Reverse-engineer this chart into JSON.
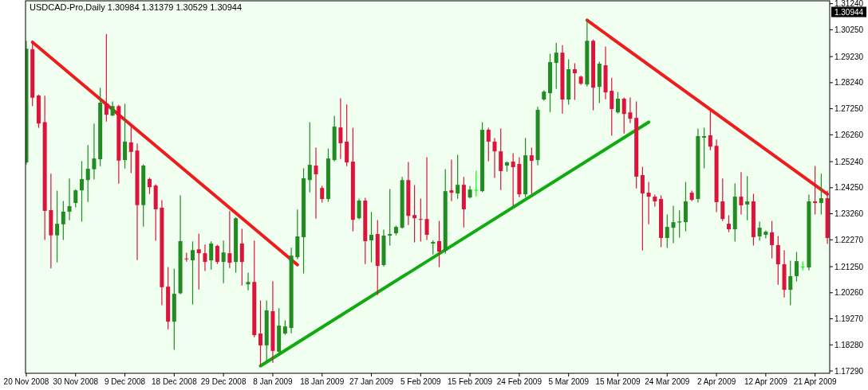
{
  "chart_data": {
    "type": "candlestick",
    "title": "USDCAD-Pro,Daily  1.30984 1.31379 1.30529 1.30944",
    "categories": [
      "20 Nov 2008",
      null,
      null,
      null,
      null,
      null,
      null,
      null,
      "30 Nov 2008",
      null,
      null,
      null,
      null,
      null,
      null,
      null,
      "9 Dec 2008",
      null,
      null,
      null,
      null,
      null,
      null,
      null,
      "18 Dec 2008",
      null,
      null,
      null,
      null,
      null,
      null,
      null,
      "29 Dec 2008",
      null,
      null,
      null,
      null,
      null,
      null,
      null,
      "8 Jan 2009",
      null,
      null,
      null,
      null,
      null,
      null,
      null,
      "18 Jan 2009",
      null,
      null,
      null,
      null,
      null,
      null,
      null,
      "27 Jan 2009",
      null,
      null,
      null,
      null,
      null,
      null,
      null,
      "5 Feb 2009",
      null,
      null,
      null,
      null,
      null,
      null,
      null,
      "15 Feb 2009",
      null,
      null,
      null,
      null,
      null,
      null,
      null,
      "24 Feb 2009",
      null,
      null,
      null,
      null,
      null,
      null,
      null,
      "5 Mar 2009",
      null,
      null,
      null,
      null,
      null,
      null,
      null,
      "15 Mar 2009",
      null,
      null,
      null,
      null,
      null,
      null,
      null,
      "24 Mar 2009",
      null,
      null,
      null,
      null,
      null,
      null,
      null,
      "2 Apr 2009",
      null,
      null,
      null,
      null,
      null,
      null,
      null,
      "12 Apr 2009",
      null,
      null,
      null,
      null,
      null,
      null,
      null,
      "21 Apr 2009",
      null,
      null
    ],
    "ohlc": [
      [
        1.2521,
        1.2981,
        1.2515,
        1.2953
      ],
      [
        1.2951,
        1.2976,
        1.2737,
        1.2767
      ],
      [
        1.2775,
        1.2777,
        1.2654,
        1.2669
      ],
      [
        1.2674,
        1.2773,
        1.2228,
        1.2337
      ],
      [
        1.234,
        1.2476,
        1.212,
        1.2244
      ],
      [
        1.2244,
        1.2412,
        1.2143,
        1.2288
      ],
      [
        1.2286,
        1.2373,
        1.2228,
        1.2334
      ],
      [
        1.2334,
        1.2458,
        1.2303,
        1.2355
      ],
      [
        1.2367,
        1.2417,
        1.2352,
        1.2415
      ],
      [
        1.2415,
        1.2524,
        1.2298,
        1.2458
      ],
      [
        1.2454,
        1.2585,
        1.2373,
        1.2497
      ],
      [
        1.2495,
        1.2667,
        1.2458,
        1.2536
      ],
      [
        1.2533,
        1.2802,
        1.2509,
        1.2748
      ],
      [
        1.2745,
        1.3007,
        1.2678,
        1.2702
      ],
      [
        1.2699,
        1.2751,
        1.2699,
        1.2735
      ],
      [
        1.2735,
        1.2738,
        1.2442,
        1.2528
      ],
      [
        1.253,
        1.2742,
        1.25,
        1.26
      ],
      [
        1.2597,
        1.2664,
        1.2482,
        1.2561
      ],
      [
        1.2566,
        1.2591,
        1.2152,
        1.2359
      ],
      [
        1.2359,
        1.2512,
        1.2279,
        1.2509
      ],
      [
        1.2458,
        1.2461,
        1.2403,
        1.2427
      ],
      [
        1.2433,
        1.2436,
        1.2225,
        1.2343
      ],
      [
        1.2349,
        1.2376,
        1.198,
        1.2047
      ],
      [
        1.2049,
        1.2122,
        1.1889,
        1.1916
      ],
      [
        1.1916,
        1.2116,
        1.1811,
        1.2022
      ],
      [
        1.2024,
        1.2394,
        1.2022,
        1.2222
      ],
      [
        1.2156,
        1.2176,
        1.2146,
        1.2154
      ],
      [
        1.2149,
        1.2219,
        1.1983,
        1.2188
      ],
      [
        1.2191,
        1.2249,
        1.204,
        1.2176
      ],
      [
        1.2176,
        1.2207,
        1.211,
        1.2143
      ],
      [
        1.2149,
        1.2219,
        1.2116,
        1.2213
      ],
      [
        1.2204,
        1.2206,
        1.2137,
        1.2143
      ],
      [
        1.2143,
        1.2222,
        1.2064,
        1.2179
      ],
      [
        1.2176,
        1.2334,
        1.2122,
        1.214
      ],
      [
        1.2143,
        1.2311,
        1.2104,
        1.2309
      ],
      [
        1.2213,
        1.2267,
        1.2055,
        1.2143
      ],
      [
        1.2058,
        1.2101,
        1.2037,
        1.2067
      ],
      [
        1.2067,
        1.2222,
        1.1859,
        1.1865
      ],
      [
        1.1871,
        1.1995,
        1.175,
        1.1826
      ],
      [
        1.1826,
        1.1995,
        1.1768,
        1.1959
      ],
      [
        1.1956,
        1.2068,
        1.1762,
        1.1805
      ],
      [
        1.1802,
        1.1965,
        1.1793,
        1.1901
      ],
      [
        1.1871,
        1.1919,
        1.1868,
        1.1898
      ],
      [
        1.1892,
        1.2195,
        1.1874,
        1.2167
      ],
      [
        1.2161,
        1.234,
        1.2155,
        1.224
      ],
      [
        1.2237,
        1.2497,
        1.2101,
        1.2461
      ],
      [
        1.2454,
        1.2672,
        1.2409,
        1.2512
      ],
      [
        1.2509,
        1.2575,
        1.2309,
        1.2476
      ],
      [
        1.2424,
        1.243,
        1.237,
        1.2382
      ],
      [
        1.2382,
        1.2572,
        1.2373,
        1.2536
      ],
      [
        1.253,
        1.2696,
        1.2527,
        1.2657
      ],
      [
        1.2654,
        1.2763,
        1.2536,
        1.2594
      ],
      [
        1.26,
        1.2739,
        1.2509,
        1.2521
      ],
      [
        1.2524,
        1.2651,
        1.2261,
        1.2303
      ],
      [
        1.2309,
        1.2382,
        1.2307,
        1.2376
      ],
      [
        1.2376,
        1.2385,
        1.2137,
        1.2222
      ],
      [
        1.2225,
        1.2331,
        1.2143,
        1.2246
      ],
      [
        1.2249,
        1.23,
        1.2019,
        1.2128
      ],
      [
        1.2131,
        1.2264,
        1.2128,
        1.2243
      ],
      [
        1.2243,
        1.2418,
        1.2207,
        1.2249
      ],
      [
        1.2252,
        1.2279,
        1.2246,
        1.2276
      ],
      [
        1.2273,
        1.2464,
        1.2271,
        1.2454
      ],
      [
        1.2454,
        1.2521,
        1.2285,
        1.2318
      ],
      [
        1.2321,
        1.2433,
        1.2219,
        1.2309
      ],
      [
        1.2306,
        1.2382,
        1.2222,
        1.2303
      ],
      [
        1.2306,
        1.2539,
        1.2228,
        1.2246
      ],
      [
        1.2213,
        1.2223,
        1.2173,
        1.2219
      ],
      [
        1.2222,
        1.2297,
        1.2125,
        1.2182
      ],
      [
        1.2185,
        1.2494,
        1.2176,
        1.2412
      ],
      [
        1.2415,
        1.253,
        1.2376,
        1.2406
      ],
      [
        1.2403,
        1.2548,
        1.2385,
        1.2436
      ],
      [
        1.2436,
        1.2464,
        1.2276,
        1.2343
      ],
      [
        1.2388,
        1.243,
        1.2386,
        1.2418
      ],
      [
        1.2417,
        1.2488,
        1.2394,
        1.2417
      ],
      [
        1.2412,
        1.2672,
        1.241,
        1.2645
      ],
      [
        1.2645,
        1.2651,
        1.2527,
        1.26
      ],
      [
        1.26,
        1.2612,
        1.2464,
        1.2563
      ],
      [
        1.2563,
        1.2648,
        1.2418,
        1.2488
      ],
      [
        1.2509,
        1.2523,
        1.2488,
        1.2521
      ],
      [
        1.2524,
        1.2554,
        1.2358,
        1.2503
      ],
      [
        1.2515,
        1.2539,
        1.2391,
        1.24
      ],
      [
        1.24,
        1.2612,
        1.2391,
        1.2548
      ],
      [
        1.2548,
        1.2575,
        1.2403,
        1.2527
      ],
      [
        1.253,
        1.273,
        1.2512,
        1.2721
      ],
      [
        1.276,
        1.2793,
        1.2757,
        1.279
      ],
      [
        1.2784,
        1.2932,
        1.2714,
        1.2902
      ],
      [
        1.2899,
        1.2974,
        1.2802,
        1.2938
      ],
      [
        1.2938,
        1.2965,
        1.2708,
        1.276
      ],
      [
        1.276,
        1.2911,
        1.2742,
        1.2875
      ],
      [
        1.2875,
        1.2896,
        1.276,
        1.286
      ],
      [
        1.2847,
        1.2849,
        1.2817,
        1.282
      ],
      [
        1.2817,
        1.3065,
        1.2811,
        1.2983
      ],
      [
        1.2983,
        1.2986,
        1.2721,
        1.2805
      ],
      [
        1.2808,
        1.2902,
        1.2748,
        1.2896
      ],
      [
        1.289,
        1.2959,
        1.2763,
        1.2787
      ],
      [
        1.2793,
        1.2841,
        1.2624,
        1.2724
      ],
      [
        1.2711,
        1.2787,
        1.2709,
        1.2763
      ],
      [
        1.2763,
        1.2766,
        1.2633,
        1.2705
      ],
      [
        1.2711,
        1.2766,
        1.2672,
        1.2687
      ],
      [
        1.269,
        1.2751,
        1.2424,
        1.2467
      ],
      [
        1.2473,
        1.2503,
        1.2188,
        1.2403
      ],
      [
        1.2406,
        1.2445,
        1.2288,
        1.2391
      ],
      [
        1.2391,
        1.2397,
        1.2355,
        1.2373
      ],
      [
        1.2382,
        1.2394,
        1.2201,
        1.2234
      ],
      [
        1.2234,
        1.2321,
        1.2198,
        1.2276
      ],
      [
        1.2273,
        1.2355,
        1.2216,
        1.2294
      ],
      [
        1.2293,
        1.2337,
        1.2237,
        1.2297
      ],
      [
        1.2294,
        1.2445,
        1.2261,
        1.2373
      ],
      [
        1.2406,
        1.2412,
        1.2376,
        1.2379
      ],
      [
        1.2382,
        1.2648,
        1.237,
        1.2621
      ],
      [
        1.2615,
        1.2651,
        1.25,
        1.2621
      ],
      [
        1.2624,
        1.2714,
        1.2569,
        1.2581
      ],
      [
        1.2584,
        1.2606,
        1.2334,
        1.237
      ],
      [
        1.2373,
        1.2458,
        1.23,
        1.2306
      ],
      [
        1.2288,
        1.2318,
        1.2258,
        1.2267
      ],
      [
        1.2267,
        1.2439,
        1.2222,
        1.2391
      ],
      [
        1.2391,
        1.2482,
        1.2325,
        1.2358
      ],
      [
        1.2361,
        1.2467,
        1.2303,
        1.2373
      ],
      [
        1.2373,
        1.24,
        1.2207,
        1.2237
      ],
      [
        1.224,
        1.2294,
        1.2225,
        1.2273
      ],
      [
        1.2246,
        1.2261,
        1.2234,
        1.2258
      ],
      [
        1.2255,
        1.2297,
        1.2158,
        1.2207
      ],
      [
        1.2207,
        1.224,
        1.2058,
        1.2134
      ],
      [
        1.2134,
        1.2185,
        1.201,
        1.2037
      ],
      [
        1.2037,
        1.2146,
        1.198,
        1.2089
      ],
      [
        1.2089,
        1.2179,
        1.2071,
        1.2146
      ],
      [
        1.2125,
        1.2143,
        1.2113,
        1.2125
      ],
      [
        1.2122,
        1.2397,
        1.2113,
        1.2373
      ],
      [
        1.2373,
        1.2506,
        1.2325,
        1.2367
      ],
      [
        1.2367,
        1.2476,
        1.2325,
        1.2385
      ],
      [
        1.2385,
        1.2412,
        1.2213,
        1.2234
      ]
    ],
    "colors": [
      "#228b22",
      "#dc143c",
      "#dc143c",
      "#dc143c",
      "#dc143c",
      "#228b22",
      "#228b22",
      "#228b22",
      "#228b22",
      "#228b22",
      "#228b22",
      "#228b22",
      "#228b22",
      "#dc143c",
      "#228b22",
      "#dc143c",
      "#228b22",
      "#dc143c",
      "#dc143c",
      "#228b22",
      "#dc143c",
      "#dc143c",
      "#dc143c",
      "#dc143c",
      "#228b22",
      "#228b22",
      "#dc143c",
      "#228b22",
      "#dc143c",
      "#dc143c",
      "#228b22",
      "#dc143c",
      "#228b22",
      "#dc143c",
      "#228b22",
      "#dc143c",
      "#228b22",
      "#dc143c",
      "#dc143c",
      "#228b22",
      "#dc143c",
      "#228b22",
      "#228b22",
      "#228b22",
      "#228b22",
      "#228b22",
      "#228b22",
      "#dc143c",
      "#dc143c",
      "#228b22",
      "#228b22",
      "#dc143c",
      "#dc143c",
      "#dc143c",
      "#228b22",
      "#dc143c",
      "#228b22",
      "#dc143c",
      "#228b22",
      "#228b22",
      "#228b22",
      "#228b22",
      "#dc143c",
      "#dc143c",
      "#dc143c",
      "#dc143c",
      "#228b22",
      "#dc143c",
      "#228b22",
      "#dc143c",
      "#228b22",
      "#dc143c",
      "#228b22",
      "#00ff00",
      "#228b22",
      "#dc143c",
      "#dc143c",
      "#dc143c",
      "#228b22",
      "#dc143c",
      "#dc143c",
      "#228b22",
      "#dc143c",
      "#228b22",
      "#228b22",
      "#228b22",
      "#228b22",
      "#dc143c",
      "#228b22",
      "#dc143c",
      "#dc143c",
      "#228b22",
      "#dc143c",
      "#228b22",
      "#dc143c",
      "#dc143c",
      "#228b22",
      "#dc143c",
      "#dc143c",
      "#dc143c",
      "#dc143c",
      "#dc143c",
      "#dc143c",
      "#dc143c",
      "#228b22",
      "#228b22",
      "#228b22",
      "#228b22",
      "#dc143c",
      "#228b22",
      "#228b22",
      "#dc143c",
      "#dc143c",
      "#dc143c",
      "#dc143c",
      "#228b22",
      "#dc143c",
      "#228b22",
      "#dc143c",
      "#228b22",
      "#228b22",
      "#dc143c",
      "#dc143c",
      "#dc143c",
      "#228b22",
      "#228b22",
      "#00ff00",
      "#228b22",
      "#dc143c",
      "#228b22",
      "#dc143c"
    ],
    "series": [
      {
        "type": "line",
        "color": "#ee1c1c",
        "values": [
          null,
          1.2978,
          null,
          null,
          null,
          null,
          null,
          null,
          null,
          null,
          null,
          null,
          null,
          null,
          null,
          null,
          null,
          null,
          null,
          null,
          null,
          null,
          null,
          null,
          null,
          null,
          null,
          null,
          null,
          null,
          null,
          null,
          null,
          null,
          null,
          null,
          null,
          null,
          null,
          null,
          null,
          null,
          null,
          null,
          1.2132,
          null,
          null,
          null,
          null,
          null,
          null,
          null,
          null,
          null,
          null,
          null,
          null,
          null,
          null,
          null,
          null,
          null,
          null,
          null,
          null,
          null,
          null,
          null,
          null,
          null,
          null,
          null,
          null,
          null,
          null,
          null,
          null,
          null,
          null,
          null,
          null,
          null,
          null,
          null,
          null,
          null,
          null,
          null,
          null,
          null,
          null,
          null,
          null,
          null,
          null,
          null,
          null,
          null,
          null,
          null,
          null,
          null,
          null,
          null,
          null,
          null,
          null,
          null,
          null,
          null,
          null,
          null,
          null,
          null,
          null,
          null,
          null,
          null,
          null,
          null,
          null,
          null,
          null,
          null,
          null,
          null,
          null,
          null,
          null,
          null,
          null
        ]
      },
      {
        "type": "line",
        "color": "#ee1c1c",
        "values": [
          null,
          null,
          null,
          null,
          null,
          null,
          null,
          null,
          null,
          null,
          null,
          null,
          null,
          null,
          null,
          null,
          null,
          null,
          null,
          null,
          null,
          null,
          null,
          null,
          null,
          null,
          null,
          null,
          null,
          null,
          null,
          null,
          null,
          null,
          null,
          null,
          null,
          null,
          null,
          null,
          null,
          null,
          null,
          null,
          null,
          null,
          null,
          null,
          null,
          null,
          null,
          null,
          null,
          null,
          null,
          null,
          null,
          null,
          null,
          null,
          null,
          null,
          null,
          null,
          null,
          null,
          null,
          null,
          null,
          null,
          null,
          null,
          null,
          null,
          null,
          null,
          null,
          null,
          null,
          null,
          null,
          null,
          null,
          null,
          null,
          null,
          null,
          null,
          null,
          null,
          null,
          1.3061,
          null,
          null,
          null,
          null,
          null,
          null,
          null,
          null,
          null,
          null,
          null,
          null,
          null,
          null,
          null,
          null,
          null,
          null,
          null,
          null,
          null,
          null,
          null,
          null,
          null,
          null,
          null,
          null,
          null,
          null,
          null,
          null,
          null,
          null,
          null,
          null,
          null,
          null,
          1.2401
        ]
      },
      {
        "type": "line",
        "color": "#11aa11",
        "values": [
          null,
          null,
          null,
          null,
          null,
          null,
          null,
          null,
          null,
          null,
          null,
          null,
          null,
          null,
          null,
          null,
          null,
          null,
          null,
          null,
          null,
          null,
          null,
          null,
          null,
          null,
          null,
          null,
          null,
          null,
          null,
          null,
          null,
          null,
          null,
          null,
          null,
          null,
          1.1748,
          null,
          null,
          null,
          null,
          null,
          null,
          null,
          null,
          null,
          null,
          null,
          null,
          null,
          null,
          null,
          null,
          null,
          null,
          null,
          null,
          null,
          null,
          null,
          null,
          null,
          null,
          null,
          null,
          null,
          null,
          null,
          null,
          null,
          null,
          null,
          null,
          null,
          null,
          null,
          null,
          null,
          null,
          null,
          null,
          null,
          null,
          null,
          null,
          null,
          null,
          null,
          null,
          null,
          null,
          null,
          null,
          null,
          null,
          null,
          null,
          null,
          null,
          1.2674,
          null,
          null,
          null,
          null,
          null,
          null,
          null,
          null,
          null,
          null,
          null,
          null,
          null,
          null,
          null,
          null,
          null,
          null,
          null,
          null,
          null,
          null,
          null,
          null,
          null,
          null,
          null,
          null,
          null
        ]
      }
    ],
    "ylim": [
      1.172,
      1.3135
    ],
    "yticks": [
      {
        "value": 1.3124,
        "label": "1.31240"
      },
      {
        "value": 1.3025,
        "label": "1.30250"
      },
      {
        "value": 1.2923,
        "label": "1.29230"
      },
      {
        "value": 1.2824,
        "label": "1.28240"
      },
      {
        "value": 1.2725,
        "label": "1.27250"
      },
      {
        "value": 1.2626,
        "label": "1.26260"
      },
      {
        "value": 1.2524,
        "label": "1.25240"
      },
      {
        "value": 1.2425,
        "label": "1.24250"
      },
      {
        "value": 1.2326,
        "label": "1.23260"
      },
      {
        "value": 1.2227,
        "label": "1.22270"
      },
      {
        "value": 1.2125,
        "label": "1.21250"
      },
      {
        "value": 1.2026,
        "label": "1.20260"
      },
      {
        "value": 1.1927,
        "label": "1.19270"
      },
      {
        "value": 1.1828,
        "label": "1.18280"
      },
      {
        "value": 1.1729,
        "label": "1.17290"
      }
    ],
    "annotations": [
      "1.30944"
    ],
    "grid": false
  }
}
